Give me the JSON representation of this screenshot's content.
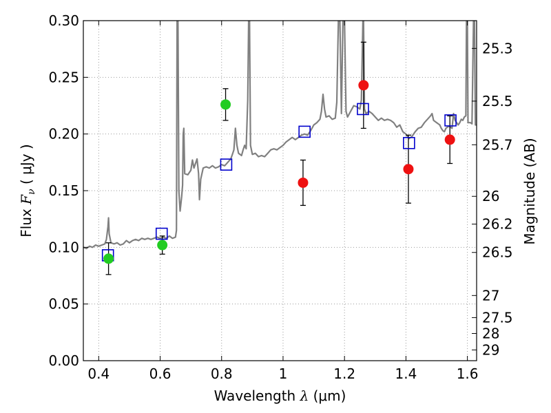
{
  "chart_data": {
    "type": "scatter",
    "xlim": [
      0.35,
      1.63
    ],
    "ylim": [
      0.0,
      0.3
    ],
    "grid": true,
    "legend": "none",
    "xlabel": {
      "prefix": "Wavelength  ",
      "symbol": "λ",
      "unit": " (μm)"
    },
    "ylabel": {
      "prefix": "Flux  ",
      "symbol": "F",
      "subscript": "ν",
      "unit": "  ( μJy )"
    },
    "ylabel_right": "Magnitude (AB)",
    "x_ticks": [
      {
        "value": 0.4,
        "label": "0.4"
      },
      {
        "value": 0.6,
        "label": "0.6"
      },
      {
        "value": 0.8,
        "label": "0.8"
      },
      {
        "value": 1.0,
        "label": "1"
      },
      {
        "value": 1.2,
        "label": "1.2"
      },
      {
        "value": 1.4,
        "label": "1.4"
      },
      {
        "value": 1.6,
        "label": "1.6"
      }
    ],
    "y_ticks": [
      {
        "value": 0.0,
        "label": "0.00"
      },
      {
        "value": 0.05,
        "label": "0.05"
      },
      {
        "value": 0.1,
        "label": "0.10"
      },
      {
        "value": 0.15,
        "label": "0.15"
      },
      {
        "value": 0.2,
        "label": "0.20"
      },
      {
        "value": 0.25,
        "label": "0.25"
      },
      {
        "value": 0.3,
        "label": "0.30"
      }
    ],
    "mag_ticks": [
      {
        "flux": 0.2755,
        "label": "25.3"
      },
      {
        "flux": 0.229,
        "label": "25.5"
      },
      {
        "flux": 0.1905,
        "label": "25.7"
      },
      {
        "flux": 0.145,
        "label": "26"
      },
      {
        "flux": 0.1205,
        "label": "26.2"
      },
      {
        "flux": 0.0955,
        "label": "26.5"
      },
      {
        "flux": 0.0575,
        "label": "27"
      },
      {
        "flux": 0.038,
        "label": "27.5"
      },
      {
        "flux": 0.024,
        "label": "28"
      },
      {
        "flux": 0.0095,
        "label": "29"
      }
    ],
    "colors": {
      "spectrum": "#808080",
      "model": "#0000cc",
      "green": "#22cc22",
      "red": "#ee1111",
      "grid": "#999999"
    },
    "spectrum": [
      [
        0.35,
        0.1
      ],
      [
        0.36,
        0.099
      ],
      [
        0.37,
        0.101
      ],
      [
        0.38,
        0.1
      ],
      [
        0.39,
        0.102
      ],
      [
        0.4,
        0.101
      ],
      [
        0.41,
        0.102
      ],
      [
        0.42,
        0.103
      ],
      [
        0.425,
        0.107
      ],
      [
        0.43,
        0.118
      ],
      [
        0.432,
        0.126
      ],
      [
        0.434,
        0.112
      ],
      [
        0.44,
        0.104
      ],
      [
        0.45,
        0.103
      ],
      [
        0.46,
        0.104
      ],
      [
        0.47,
        0.102
      ],
      [
        0.48,
        0.103
      ],
      [
        0.49,
        0.106
      ],
      [
        0.5,
        0.104
      ],
      [
        0.51,
        0.106
      ],
      [
        0.52,
        0.107
      ],
      [
        0.53,
        0.106
      ],
      [
        0.54,
        0.108
      ],
      [
        0.55,
        0.107
      ],
      [
        0.56,
        0.108
      ],
      [
        0.57,
        0.107
      ],
      [
        0.58,
        0.108
      ],
      [
        0.59,
        0.109
      ],
      [
        0.6,
        0.108
      ],
      [
        0.61,
        0.109
      ],
      [
        0.62,
        0.108
      ],
      [
        0.63,
        0.11
      ],
      [
        0.64,
        0.108
      ],
      [
        0.65,
        0.109
      ],
      [
        0.653,
        0.115
      ],
      [
        0.655,
        0.3
      ],
      [
        0.658,
        0.3
      ],
      [
        0.661,
        0.15
      ],
      [
        0.665,
        0.132
      ],
      [
        0.67,
        0.145
      ],
      [
        0.673,
        0.155
      ],
      [
        0.675,
        0.2
      ],
      [
        0.677,
        0.205
      ],
      [
        0.68,
        0.165
      ],
      [
        0.69,
        0.164
      ],
      [
        0.7,
        0.168
      ],
      [
        0.705,
        0.177
      ],
      [
        0.71,
        0.17
      ],
      [
        0.72,
        0.178
      ],
      [
        0.725,
        0.165
      ],
      [
        0.728,
        0.142
      ],
      [
        0.732,
        0.16
      ],
      [
        0.74,
        0.17
      ],
      [
        0.75,
        0.171
      ],
      [
        0.76,
        0.17
      ],
      [
        0.77,
        0.172
      ],
      [
        0.78,
        0.17
      ],
      [
        0.79,
        0.171
      ],
      [
        0.8,
        0.173
      ],
      [
        0.81,
        0.172
      ],
      [
        0.82,
        0.175
      ],
      [
        0.83,
        0.178
      ],
      [
        0.835,
        0.182
      ],
      [
        0.84,
        0.186
      ],
      [
        0.845,
        0.205
      ],
      [
        0.85,
        0.19
      ],
      [
        0.855,
        0.183
      ],
      [
        0.86,
        0.182
      ],
      [
        0.865,
        0.181
      ],
      [
        0.87,
        0.186
      ],
      [
        0.875,
        0.19
      ],
      [
        0.88,
        0.187
      ],
      [
        0.885,
        0.23
      ],
      [
        0.888,
        0.3
      ],
      [
        0.891,
        0.3
      ],
      [
        0.894,
        0.19
      ],
      [
        0.9,
        0.182
      ],
      [
        0.91,
        0.183
      ],
      [
        0.92,
        0.18
      ],
      [
        0.93,
        0.181
      ],
      [
        0.94,
        0.18
      ],
      [
        0.95,
        0.183
      ],
      [
        0.96,
        0.186
      ],
      [
        0.97,
        0.187
      ],
      [
        0.98,
        0.186
      ],
      [
        0.99,
        0.188
      ],
      [
        1.0,
        0.19
      ],
      [
        1.01,
        0.193
      ],
      [
        1.02,
        0.195
      ],
      [
        1.03,
        0.197
      ],
      [
        1.04,
        0.195
      ],
      [
        1.05,
        0.197
      ],
      [
        1.06,
        0.199
      ],
      [
        1.07,
        0.2
      ],
      [
        1.08,
        0.199
      ],
      [
        1.09,
        0.203
      ],
      [
        1.1,
        0.208
      ],
      [
        1.11,
        0.21
      ],
      [
        1.12,
        0.213
      ],
      [
        1.125,
        0.22
      ],
      [
        1.13,
        0.235
      ],
      [
        1.135,
        0.222
      ],
      [
        1.14,
        0.215
      ],
      [
        1.15,
        0.216
      ],
      [
        1.16,
        0.213
      ],
      [
        1.17,
        0.214
      ],
      [
        1.175,
        0.228
      ],
      [
        1.18,
        0.3
      ],
      [
        1.185,
        0.3
      ],
      [
        1.19,
        0.218
      ],
      [
        1.195,
        0.3
      ],
      [
        1.2,
        0.3
      ],
      [
        1.205,
        0.22
      ],
      [
        1.21,
        0.215
      ],
      [
        1.22,
        0.22
      ],
      [
        1.23,
        0.225
      ],
      [
        1.24,
        0.224
      ],
      [
        1.25,
        0.222
      ],
      [
        1.255,
        0.23
      ],
      [
        1.26,
        0.3
      ],
      [
        1.262,
        0.3
      ],
      [
        1.265,
        0.222
      ],
      [
        1.27,
        0.218
      ],
      [
        1.28,
        0.22
      ],
      [
        1.29,
        0.218
      ],
      [
        1.3,
        0.215
      ],
      [
        1.31,
        0.212
      ],
      [
        1.32,
        0.214
      ],
      [
        1.33,
        0.212
      ],
      [
        1.34,
        0.213
      ],
      [
        1.35,
        0.212
      ],
      [
        1.36,
        0.21
      ],
      [
        1.37,
        0.206
      ],
      [
        1.38,
        0.208
      ],
      [
        1.39,
        0.202
      ],
      [
        1.4,
        0.2
      ],
      [
        1.41,
        0.196
      ],
      [
        1.42,
        0.198
      ],
      [
        1.43,
        0.202
      ],
      [
        1.44,
        0.205
      ],
      [
        1.45,
        0.206
      ],
      [
        1.46,
        0.21
      ],
      [
        1.47,
        0.213
      ],
      [
        1.48,
        0.216
      ],
      [
        1.485,
        0.218
      ],
      [
        1.49,
        0.212
      ],
      [
        1.5,
        0.21
      ],
      [
        1.51,
        0.208
      ],
      [
        1.515,
        0.205
      ],
      [
        1.52,
        0.203
      ],
      [
        1.525,
        0.202
      ],
      [
        1.53,
        0.205
      ],
      [
        1.54,
        0.207
      ],
      [
        1.55,
        0.205
      ],
      [
        1.555,
        0.218
      ],
      [
        1.56,
        0.212
      ],
      [
        1.57,
        0.208
      ],
      [
        1.575,
        0.21
      ],
      [
        1.58,
        0.213
      ],
      [
        1.585,
        0.212
      ],
      [
        1.59,
        0.215
      ],
      [
        1.595,
        0.216
      ],
      [
        1.597,
        0.3
      ],
      [
        1.6,
        0.3
      ],
      [
        1.602,
        0.21
      ],
      [
        1.61,
        0.21
      ],
      [
        1.615,
        0.209
      ],
      [
        1.62,
        0.3
      ],
      [
        1.623,
        0.3
      ],
      [
        1.626,
        0.208
      ],
      [
        1.63,
        0.208
      ]
    ],
    "model_points": [
      {
        "x": 0.43,
        "y": 0.093
      },
      {
        "x": 0.605,
        "y": 0.112
      },
      {
        "x": 0.815,
        "y": 0.173
      },
      {
        "x": 1.07,
        "y": 0.202
      },
      {
        "x": 1.26,
        "y": 0.222
      },
      {
        "x": 1.41,
        "y": 0.192
      },
      {
        "x": 1.545,
        "y": 0.212
      }
    ],
    "green_points": [
      {
        "x": 0.432,
        "y": 0.09,
        "err_low": 0.014,
        "err_high": 0.014
      },
      {
        "x": 0.607,
        "y": 0.102,
        "err_low": 0.008,
        "err_high": 0.008
      },
      {
        "x": 0.813,
        "y": 0.226,
        "err_low": 0.014,
        "err_high": 0.014
      }
    ],
    "red_points": [
      {
        "x": 1.065,
        "y": 0.157,
        "err_low": 0.02,
        "err_high": 0.02
      },
      {
        "x": 1.262,
        "y": 0.243,
        "err_low": 0.038,
        "err_high": 0.038
      },
      {
        "x": 1.408,
        "y": 0.169,
        "err_low": 0.03,
        "err_high": 0.03
      },
      {
        "x": 1.543,
        "y": 0.195,
        "err_low": 0.021,
        "err_high": 0.021
      }
    ]
  }
}
